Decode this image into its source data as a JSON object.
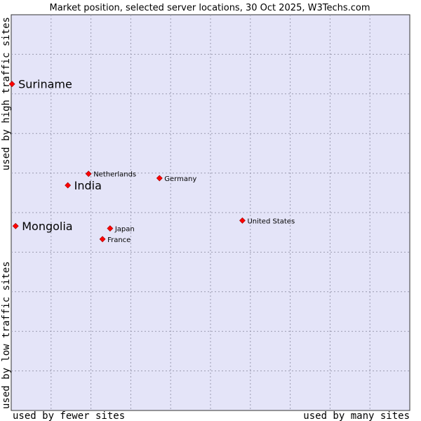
{
  "chart_data": {
    "type": "scatter",
    "title": "Market position, selected server locations, 30 Oct 2025, W3Techs.com",
    "xlabel_left": "used by fewer sites",
    "xlabel_right": "used by many sites",
    "ylabel_bottom": "used by low traffic sites",
    "ylabel_top": "used by high traffic sites",
    "xlim": [
      0,
      100
    ],
    "ylim": [
      0,
      100
    ],
    "grid": true,
    "points": [
      {
        "name": "Suriname",
        "x": 0.2,
        "y": 82.5,
        "highlight": true
      },
      {
        "name": "India",
        "x": 14.2,
        "y": 56.9,
        "highlight": true
      },
      {
        "name": "Mongolia",
        "x": 1.1,
        "y": 46.6,
        "highlight": true
      },
      {
        "name": "Netherlands",
        "x": 19.4,
        "y": 59.8,
        "highlight": false
      },
      {
        "name": "Germany",
        "x": 37.2,
        "y": 58.7,
        "highlight": false
      },
      {
        "name": "Japan",
        "x": 24.8,
        "y": 46.0,
        "highlight": false
      },
      {
        "name": "France",
        "x": 22.9,
        "y": 43.3,
        "highlight": false
      },
      {
        "name": "United States",
        "x": 58.0,
        "y": 48.0,
        "highlight": false
      }
    ]
  },
  "colors": {
    "plot_background": "#e4e4f8",
    "marker": "#ff0000",
    "grid": "#9a9ab0"
  }
}
